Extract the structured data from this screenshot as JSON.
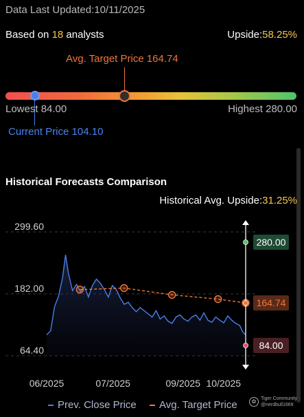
{
  "header": {
    "updated_label": "Data Last Updated:10/11/2025",
    "analysts_prefix": "Based on ",
    "analysts_count": "18",
    "analysts_suffix": " analysts",
    "upside_label": "Upside:",
    "upside_value": "58.25%"
  },
  "gauge": {
    "avg_target_label": "Avg. Target Price 164.74",
    "lowest_label": "Lowest 84.00",
    "highest_label": "Highest 280.00",
    "current_label": "Current Price 104.10",
    "lowest": 84.0,
    "highest": 280.0,
    "avg_target": 164.74,
    "current": 104.1,
    "colors": {
      "target": "#f0763a",
      "current": "#4a7ee8"
    }
  },
  "history": {
    "title": "Historical Forecasts Comparison",
    "upside_label": "Historical Avg. Upside:",
    "upside_value": "31.25%",
    "legend": {
      "close_label": "Prev. Close Price",
      "target_label": "Avg. Target Price"
    },
    "value_badges": {
      "high": "280.00",
      "avg": "164.74",
      "low": "84.00"
    }
  },
  "watermark": {
    "brand": "Tiger Community",
    "handle": "@nerdbull1669"
  },
  "chart_data": {
    "type": "line",
    "title": "",
    "xlabel": "",
    "ylabel": "",
    "ylim": [
      64.4,
      299.6
    ],
    "y_ticks": [
      "299.60",
      "182.00",
      "64.40"
    ],
    "x_ticks": [
      "06/2025",
      "07/2025",
      "09/2025",
      "10/2025"
    ],
    "x_tick_values": [
      0.0,
      0.3333,
      0.6852,
      0.8889
    ],
    "grid": true,
    "legend_position": "bottom",
    "series": [
      {
        "name": "Prev. Close Price",
        "color": "#4a7ee8",
        "x": [
          0.0,
          0.02,
          0.04,
          0.06,
          0.08,
          0.095,
          0.11,
          0.13,
          0.15,
          0.17,
          0.19,
          0.21,
          0.23,
          0.25,
          0.27,
          0.29,
          0.31,
          0.33,
          0.35,
          0.37,
          0.39,
          0.41,
          0.43,
          0.45,
          0.47,
          0.49,
          0.51,
          0.53,
          0.55,
          0.57,
          0.59,
          0.61,
          0.63,
          0.65,
          0.67,
          0.69,
          0.71,
          0.73,
          0.75,
          0.77,
          0.79,
          0.81,
          0.83,
          0.85,
          0.87,
          0.89,
          0.91,
          0.93,
          0.95,
          0.97,
          0.985,
          1.0
        ],
        "values": [
          104,
          112,
          158,
          178,
          213,
          256,
          220,
          188,
          200,
          186,
          196,
          176,
          198,
          210,
          202,
          190,
          176,
          198,
          190,
          174,
          162,
          166,
          156,
          148,
          156,
          150,
          144,
          138,
          150,
          134,
          140,
          130,
          126,
          138,
          142,
          134,
          130,
          138,
          142,
          132,
          146,
          132,
          128,
          138,
          132,
          127,
          140,
          132,
          126,
          122,
          110,
          104
        ]
      },
      {
        "name": "Avg. Target Price",
        "color": "#f0763a",
        "x": [
          0.1667,
          0.3889,
          0.6296,
          0.8611,
          1.0
        ],
        "values": [
          190,
          193,
          180,
          172,
          164.74
        ]
      }
    ],
    "markers": {
      "high": 280.0,
      "avg": 164.74,
      "low": 84.0
    }
  }
}
